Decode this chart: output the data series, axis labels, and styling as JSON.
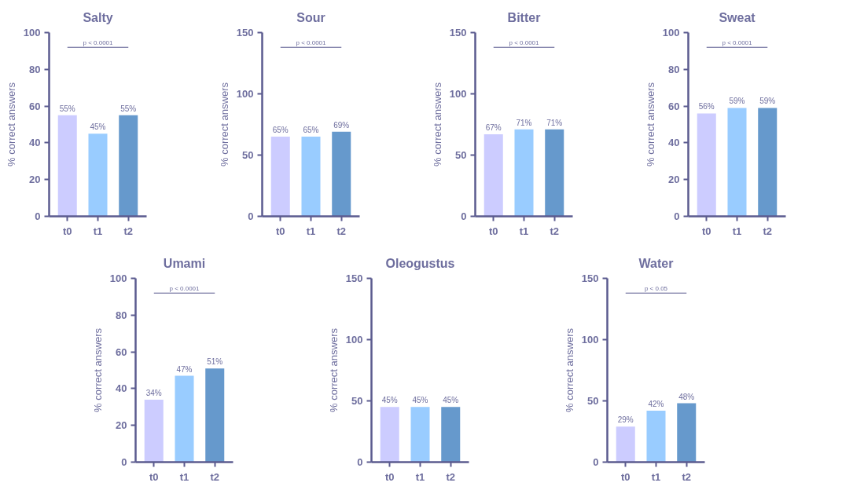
{
  "chart_data": [
    {
      "type": "bar",
      "title": "Salty",
      "ylabel": "% correct answers",
      "categories": [
        "t0",
        "t1",
        "t2"
      ],
      "values": [
        55,
        45,
        55
      ],
      "colors": [
        "#ccccff",
        "#99ccff",
        "#6699cc"
      ],
      "value_labels": [
        "55%",
        "45%",
        "55%"
      ],
      "ylim": [
        0,
        100
      ],
      "yticks": [
        0,
        20,
        40,
        60,
        80,
        100
      ],
      "annotations": [
        "p < 0.0001"
      ]
    },
    {
      "type": "bar",
      "title": "Sour",
      "ylabel": "% correct answers",
      "categories": [
        "t0",
        "t1",
        "t2"
      ],
      "values": [
        65,
        65,
        69
      ],
      "colors": [
        "#ccccff",
        "#99ccff",
        "#6699cc"
      ],
      "value_labels": [
        "65%",
        "65%",
        "69%"
      ],
      "ylim": [
        0,
        150
      ],
      "yticks": [
        0,
        50,
        100,
        150
      ],
      "annotations": [
        "p < 0.0001"
      ]
    },
    {
      "type": "bar",
      "title": "Bitter",
      "ylabel": "% correct answers",
      "categories": [
        "t0",
        "t1",
        "t2"
      ],
      "values": [
        67,
        71,
        71
      ],
      "colors": [
        "#ccccff",
        "#99ccff",
        "#6699cc"
      ],
      "value_labels": [
        "67%",
        "71%",
        "71%"
      ],
      "ylim": [
        0,
        150
      ],
      "yticks": [
        0,
        50,
        100,
        150
      ],
      "annotations": [
        "p < 0.0001"
      ]
    },
    {
      "type": "bar",
      "title": "Sweat",
      "ylabel": "% correct answers",
      "categories": [
        "t0",
        "t1",
        "t2"
      ],
      "values": [
        56,
        59,
        59
      ],
      "colors": [
        "#ccccff",
        "#99ccff",
        "#6699cc"
      ],
      "value_labels": [
        "56%",
        "59%",
        "59%"
      ],
      "ylim": [
        0,
        100
      ],
      "yticks": [
        0,
        20,
        40,
        60,
        80,
        100
      ],
      "annotations": [
        "p < 0.0001"
      ]
    },
    {
      "type": "bar",
      "title": "Umami",
      "ylabel": "% correct answers",
      "categories": [
        "t0",
        "t1",
        "t2"
      ],
      "values": [
        34,
        47,
        51
      ],
      "colors": [
        "#ccccff",
        "#99ccff",
        "#6699cc"
      ],
      "value_labels": [
        "34%",
        "47%",
        "51%"
      ],
      "ylim": [
        0,
        100
      ],
      "yticks": [
        0,
        20,
        40,
        60,
        80,
        100
      ],
      "annotations": [
        "p < 0.0001"
      ]
    },
    {
      "type": "bar",
      "title": "Oleogustus",
      "ylabel": "% correct answers",
      "categories": [
        "t0",
        "t1",
        "t2"
      ],
      "values": [
        45,
        45,
        45
      ],
      "colors": [
        "#ccccff",
        "#99ccff",
        "#6699cc"
      ],
      "value_labels": [
        "45%",
        "45%",
        "45%"
      ],
      "ylim": [
        0,
        150
      ],
      "yticks": [
        0,
        50,
        100,
        150
      ]
    },
    {
      "type": "bar",
      "title": "Water",
      "ylabel": "% correct answers",
      "categories": [
        "t0",
        "t1",
        "t2"
      ],
      "values": [
        29,
        42,
        48
      ],
      "colors": [
        "#ccccff",
        "#99ccff",
        "#6699cc"
      ],
      "value_labels": [
        "29%",
        "42%",
        "48%"
      ],
      "ylim": [
        0,
        150
      ],
      "yticks": [
        0,
        50,
        100,
        150
      ],
      "annotations": [
        "p < 0.05"
      ]
    }
  ]
}
